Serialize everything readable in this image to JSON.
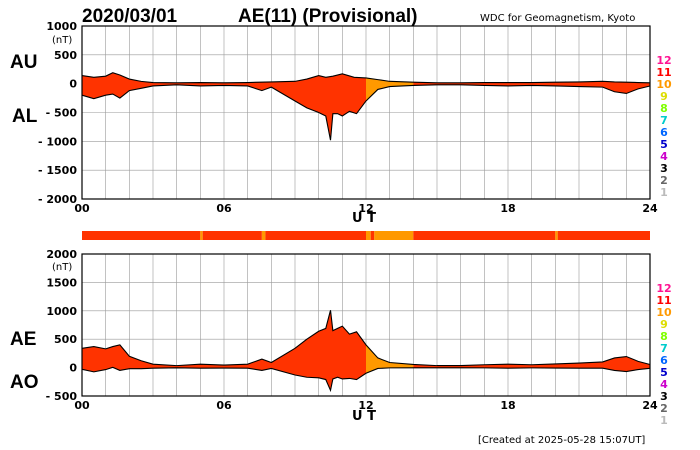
{
  "header": {
    "date": "2020/03/01",
    "title": "AE(11) (Provisional)",
    "source": "WDC for Geomagnetism, Kyoto"
  },
  "footer": {
    "created": "[Created at 2025-05-28 15:07UT]"
  },
  "colors": {
    "fill_main": "#ff3300",
    "fill_late": "#ff9900",
    "fill_early": "#ff0000",
    "grid": "#9a9a9a",
    "line": "#000000"
  },
  "legend": {
    "items": [
      {
        "label": "12",
        "color": "#ff1493"
      },
      {
        "label": "11",
        "color": "#ff0000"
      },
      {
        "label": "10",
        "color": "#ff9900"
      },
      {
        "label": "9",
        "color": "#dddd00"
      },
      {
        "label": "8",
        "color": "#7fff00"
      },
      {
        "label": "7",
        "color": "#00cccc"
      },
      {
        "label": "6",
        "color": "#0066ff"
      },
      {
        "label": "5",
        "color": "#0000cc"
      },
      {
        "label": "4",
        "color": "#cc00cc"
      },
      {
        "label": "3",
        "color": "#000000"
      },
      {
        "label": "2",
        "color": "#666666"
      },
      {
        "label": "1",
        "color": "#bbbbbb"
      }
    ]
  },
  "station_bar": {
    "segments": [
      {
        "from": 0,
        "to": 5,
        "color": "#ff3300"
      },
      {
        "from": 5,
        "to": 5.1,
        "color": "#ff9900"
      },
      {
        "from": 5.1,
        "to": 7.6,
        "color": "#ff3300"
      },
      {
        "from": 7.6,
        "to": 7.75,
        "color": "#ff9900"
      },
      {
        "from": 7.75,
        "to": 12,
        "color": "#ff3300"
      },
      {
        "from": 12,
        "to": 12.2,
        "color": "#ff9900"
      },
      {
        "from": 12.2,
        "to": 12.35,
        "color": "#ff3300"
      },
      {
        "from": 12.35,
        "to": 14,
        "color": "#ff9900"
      },
      {
        "from": 14,
        "to": 20,
        "color": "#ff3300"
      },
      {
        "from": 20,
        "to": 20.1,
        "color": "#ff9900"
      },
      {
        "from": 20.1,
        "to": 24,
        "color": "#ff3300"
      }
    ]
  },
  "chart_data": [
    {
      "type": "area",
      "panel": "AU/AL",
      "upper_label": "AU",
      "lower_label": "AL",
      "unit": "(nT)",
      "xlabel": "U T",
      "xlim": [
        0,
        24
      ],
      "ylim": [
        -2000,
        1000
      ],
      "yticks": [
        1000,
        500,
        0,
        -500,
        -1000,
        -1500,
        -2000
      ],
      "ytick_labels": [
        "1000",
        "500",
        "0",
        "- 500",
        "- 1000",
        "- 1500",
        "- 2000"
      ],
      "xticks": [
        0,
        6,
        12,
        18,
        24
      ],
      "xtick_labels": [
        "00",
        "06",
        "12",
        "18",
        "24"
      ],
      "series": [
        {
          "x": [
            0,
            0.5,
            1,
            1.3,
            1.6,
            2,
            2.5,
            3,
            4,
            5,
            6,
            7,
            8,
            9,
            9.5,
            10,
            10.3,
            10.6,
            11,
            11.5,
            12,
            12.5,
            13,
            14,
            15,
            16,
            17,
            18,
            19,
            20,
            21,
            22,
            22.5,
            23,
            23.5,
            24
          ],
          "values": [
            140,
            110,
            130,
            190,
            150,
            80,
            40,
            20,
            15,
            20,
            15,
            20,
            30,
            40,
            80,
            140,
            110,
            130,
            170,
            110,
            100,
            70,
            40,
            25,
            15,
            15,
            20,
            20,
            20,
            25,
            30,
            40,
            30,
            25,
            20,
            15
          ]
        },
        {
          "x": [
            0,
            0.5,
            1,
            1.3,
            1.6,
            2,
            2.5,
            3,
            4,
            5,
            6,
            7,
            7.6,
            8,
            9,
            9.5,
            10,
            10.3,
            10.5,
            10.6,
            10.8,
            11,
            11.3,
            11.6,
            12,
            12.5,
            13,
            14,
            15,
            16,
            17,
            18,
            19,
            20,
            21,
            22,
            22.5,
            23,
            23.5,
            24
          ],
          "values": [
            -200,
            -260,
            -200,
            -180,
            -250,
            -120,
            -80,
            -40,
            -20,
            -40,
            -30,
            -40,
            -120,
            -60,
            -300,
            -420,
            -500,
            -560,
            -980,
            -520,
            -520,
            -560,
            -480,
            -520,
            -300,
            -100,
            -50,
            -30,
            -20,
            -20,
            -30,
            -40,
            -30,
            -40,
            -50,
            -60,
            -140,
            -170,
            -90,
            -40
          ]
        }
      ]
    },
    {
      "type": "area",
      "panel": "AE/AO",
      "upper_label": "AE",
      "lower_label": "AO",
      "unit": "(nT)",
      "xlabel": "U T",
      "xlim": [
        0,
        24
      ],
      "ylim": [
        -500,
        2000
      ],
      "yticks": [
        2000,
        1500,
        1000,
        500,
        0,
        -500
      ],
      "ytick_labels": [
        "2000",
        "1500",
        "1000",
        "500",
        "0",
        "- 500"
      ],
      "xticks": [
        0,
        6,
        12,
        18,
        24
      ],
      "xtick_labels": [
        "00",
        "06",
        "12",
        "18",
        "24"
      ],
      "series": [
        {
          "x": [
            0,
            0.5,
            1,
            1.3,
            1.6,
            2,
            2.5,
            3,
            4,
            5,
            6,
            7,
            7.6,
            8,
            9,
            9.5,
            10,
            10.3,
            10.5,
            10.6,
            10.8,
            11,
            11.3,
            11.6,
            12,
            12.5,
            13,
            14,
            15,
            16,
            17,
            18,
            19,
            20,
            21,
            22,
            22.5,
            23,
            23.5,
            24
          ],
          "values": [
            340,
            370,
            330,
            370,
            400,
            200,
            120,
            60,
            35,
            60,
            45,
            60,
            150,
            90,
            340,
            500,
            640,
            690,
            1010,
            650,
            690,
            730,
            590,
            630,
            400,
            170,
            90,
            55,
            35,
            35,
            50,
            60,
            50,
            65,
            80,
            100,
            170,
            195,
            110,
            55
          ]
        },
        {
          "x": [
            0,
            0.5,
            1,
            1.3,
            1.6,
            2,
            2.5,
            3,
            4,
            5,
            6,
            7,
            7.6,
            8,
            9,
            9.5,
            10,
            10.3,
            10.5,
            10.6,
            10.8,
            11,
            11.3,
            11.6,
            12,
            12.5,
            13,
            14,
            15,
            16,
            17,
            18,
            19,
            20,
            21,
            22,
            22.5,
            23,
            23.5,
            24
          ],
          "values": [
            -30,
            -75,
            -35,
            5,
            -50,
            -20,
            -20,
            -10,
            -3,
            -10,
            -8,
            -10,
            -50,
            -15,
            -130,
            -170,
            -180,
            -210,
            -400,
            -200,
            -170,
            -200,
            -190,
            -210,
            -100,
            -15,
            -5,
            -3,
            -3,
            -3,
            -5,
            -10,
            -5,
            -8,
            -10,
            -10,
            -50,
            -70,
            -35,
            -13
          ]
        }
      ]
    }
  ]
}
